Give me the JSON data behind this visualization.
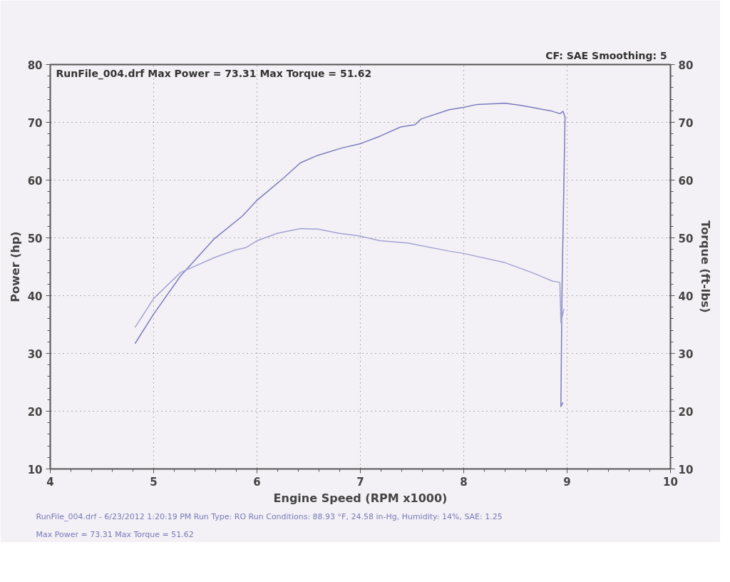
{
  "chart_data": {
    "type": "line",
    "xlabel": "Engine Speed (RPM x1000)",
    "ylabel": "Power (hp)",
    "y2label": "Torque (ft-lbs)",
    "xlim": [
      4,
      10
    ],
    "xticks": [
      4,
      5,
      6,
      7,
      8,
      9,
      10
    ],
    "ylim": [
      10,
      80
    ],
    "yticks": [
      10,
      20,
      30,
      40,
      50,
      60,
      70,
      80
    ],
    "y2lim": [
      10,
      80
    ],
    "y2ticks": [
      10,
      20,
      30,
      40,
      50,
      60,
      70,
      80
    ],
    "grid": true,
    "line_style": "solid",
    "marker": "none",
    "annotations": [
      "CF: SAE  Smoothing: 5",
      "RunFile_004.drf Max Power = 73.31     Max Torque = 51.62",
      "RunFile_004.drf - 6/23/2012 1:20:19 PM  Run Type: RO  Run Conditions: 88.93 °F, 24.58 in-Hg,  Humidity:  14%, SAE: 1.25",
      "Max Power = 73.31  Max Torque = 51.62"
    ],
    "series": [
      {
        "color": "#7b7bbf",
        "x": [
          4.82,
          5.0,
          5.26,
          5.59,
          5.86,
          6.0,
          6.26,
          6.42,
          6.59,
          6.83,
          7.0,
          7.19,
          7.39,
          7.53,
          7.59,
          7.86,
          8.0,
          8.13,
          8.4,
          8.53,
          8.66,
          8.86,
          8.93,
          8.96,
          8.98,
          8.95,
          8.94,
          8.96
        ],
        "values": [
          31.7,
          36.8,
          43.4,
          49.9,
          53.8,
          56.5,
          60.4,
          63.0,
          64.3,
          65.6,
          66.3,
          67.6,
          69.2,
          69.6,
          70.6,
          72.2,
          72.6,
          73.1,
          73.3,
          73.0,
          72.6,
          71.9,
          71.5,
          71.9,
          70.9,
          40.0,
          20.8,
          21.5
        ]
      },
      {
        "color": "#a3a3d3",
        "x": [
          4.82,
          5.0,
          5.26,
          5.59,
          5.79,
          5.89,
          6.0,
          6.2,
          6.42,
          6.59,
          6.79,
          7.0,
          7.19,
          7.46,
          7.86,
          8.0,
          8.4,
          8.66,
          8.86,
          8.93,
          8.94,
          8.97
        ],
        "values": [
          34.5,
          39.5,
          44.0,
          46.6,
          47.9,
          48.3,
          49.5,
          50.8,
          51.6,
          51.5,
          50.8,
          50.3,
          49.5,
          49.1,
          47.7,
          47.3,
          45.7,
          44.0,
          42.5,
          42.3,
          35.3,
          37.7
        ]
      }
    ]
  }
}
